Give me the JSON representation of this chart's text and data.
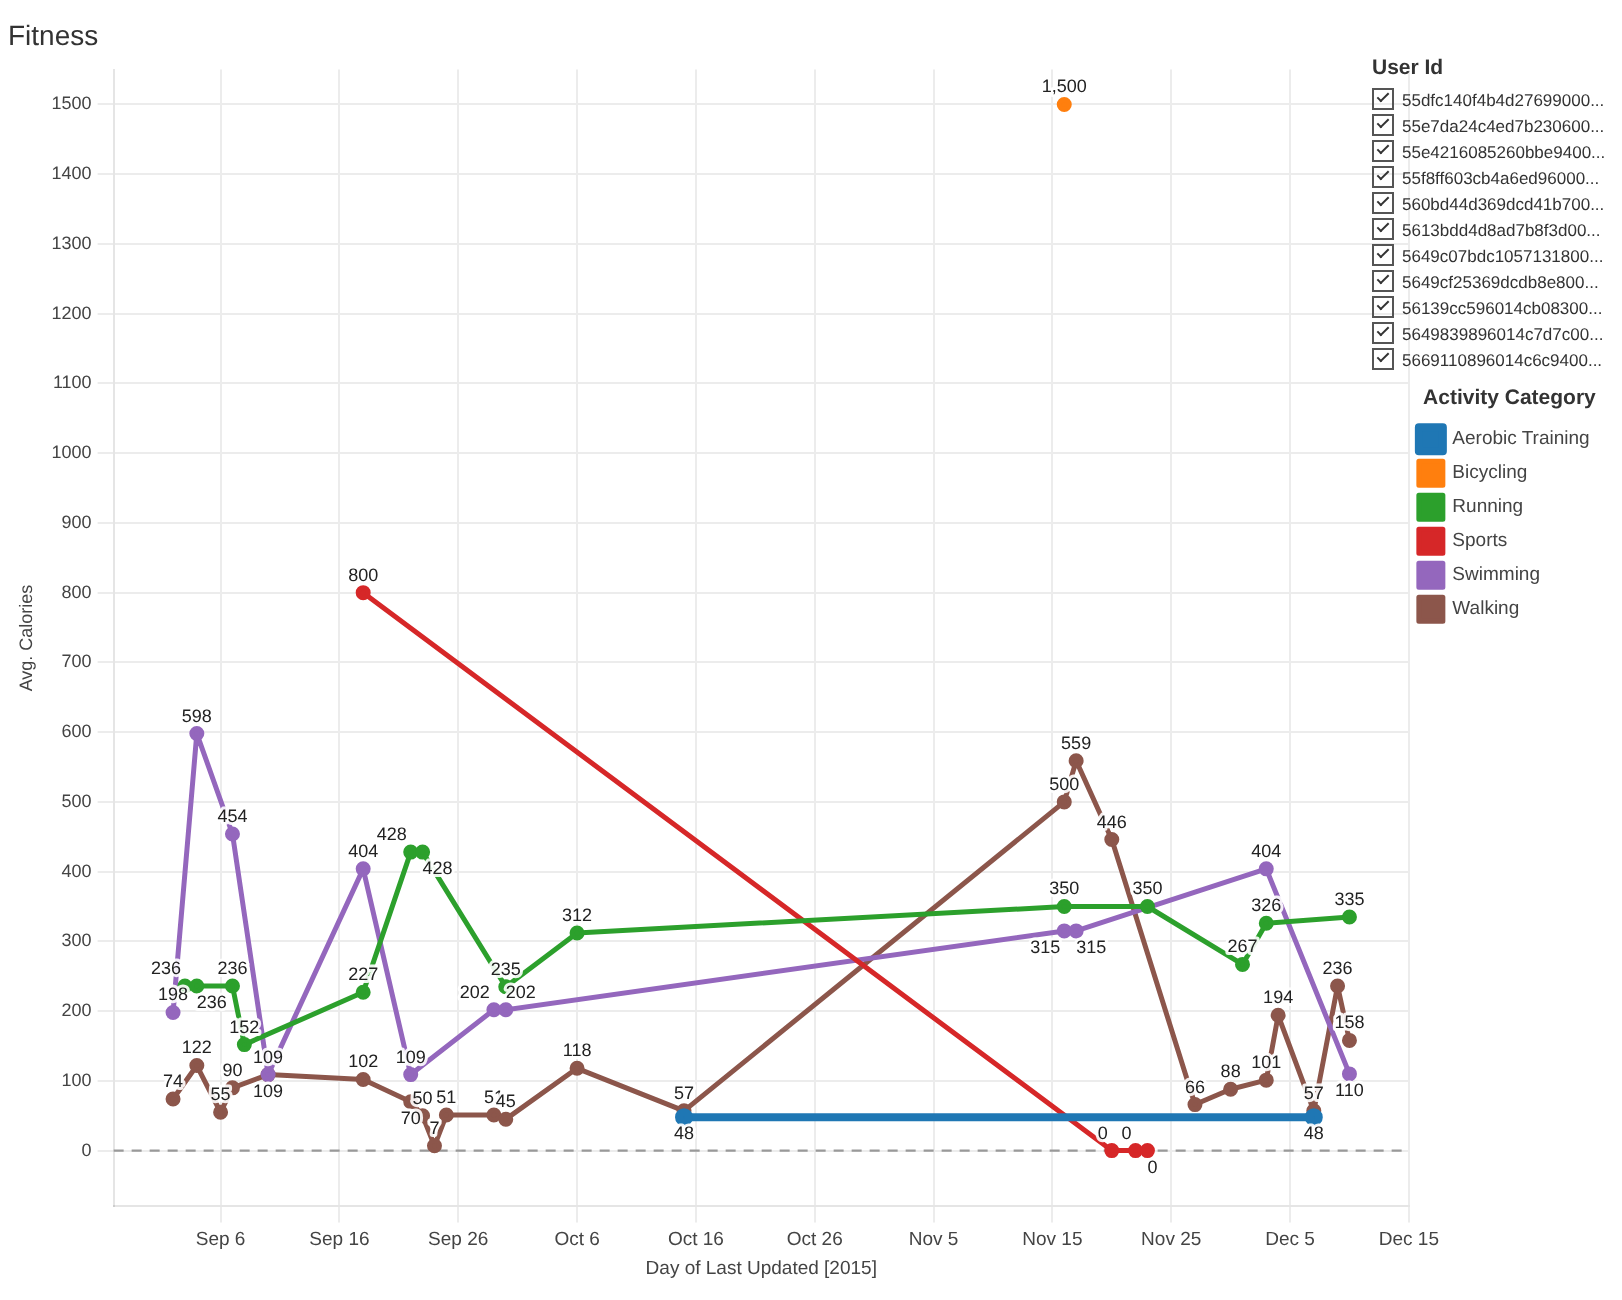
{
  "chart_data": {
    "type": "line",
    "title": "Fitness",
    "xlabel": "Day of Last Updated [2015]",
    "ylabel": "Avg. Calories",
    "legend_title": "Activity Category",
    "xlim": [
      "2015-08-28",
      "2015-12-15"
    ],
    "xticks": [
      {
        "value": "2015-09-06",
        "label": "Sep 6"
      },
      {
        "value": "2015-09-16",
        "label": "Sep 16"
      },
      {
        "value": "2015-09-26",
        "label": "Sep 26"
      },
      {
        "value": "2015-10-06",
        "label": "Oct 6"
      },
      {
        "value": "2015-10-16",
        "label": "Oct 16"
      },
      {
        "value": "2015-10-26",
        "label": "Oct 26"
      },
      {
        "value": "2015-11-05",
        "label": "Nov 5"
      },
      {
        "value": "2015-11-15",
        "label": "Nov 15"
      },
      {
        "value": "2015-11-25",
        "label": "Nov 25"
      },
      {
        "value": "2015-12-05",
        "label": "Dec 5"
      },
      {
        "value": "2015-12-15",
        "label": "Dec 15"
      }
    ],
    "ylim": [
      -80,
      1550
    ],
    "yticks": [
      0,
      100,
      200,
      300,
      400,
      500,
      600,
      700,
      800,
      900,
      1000,
      1100,
      1200,
      1300,
      1400,
      1500
    ],
    "grid": true,
    "legend": "right",
    "marker": "circle",
    "line_style": "solid",
    "ref_lines": [
      {
        "axis": "y",
        "value": 0,
        "color": "#999999",
        "line_style": "dashed"
      }
    ],
    "annotations": [
      "User Id",
      "55dfc140f4b4d27699000...",
      "55e7da24c4ed7b230600...",
      "55e4216085260bbe9400...",
      "55f8ff603cb4a6ed96000...",
      "560bd44d369dcd41b700...",
      "5613bdd4d8ad7b8f3d00...",
      "5649c07bdc1057131800...",
      "5649cf25369dcdb8e800...",
      "56139cc596014cb08300...",
      "5649839896014c7d7c00...",
      "5669110896014c6c9400..."
    ],
    "series": [
      {
        "name": "Aerobic Training",
        "color": "#1f77b4",
        "x": [
          "2015-10-15",
          "2015-12-07"
        ],
        "values": [
          48,
          48
        ],
        "value_labels": [
          "48",
          "48"
        ]
      },
      {
        "name": "Bicycling",
        "color": "#ff7f0e",
        "x": [
          "2015-11-16"
        ],
        "values": [
          1500
        ],
        "value_labels": [
          "1,500"
        ]
      },
      {
        "name": "Running",
        "color": "#2ca02c",
        "x": [
          "2015-09-03",
          "2015-09-04",
          "2015-09-07",
          "2015-09-08",
          "2015-09-18",
          "2015-09-22",
          "2015-09-23",
          "2015-09-30",
          "2015-10-06",
          "2015-11-16",
          "2015-11-23",
          "2015-12-01",
          "2015-12-03",
          "2015-12-10"
        ],
        "values": [
          236,
          236,
          236,
          152,
          227,
          428,
          428,
          235,
          312,
          350,
          350,
          267,
          326,
          335
        ],
        "value_labels": [
          "236",
          "236",
          "236",
          "152",
          "227",
          "428",
          "428",
          "235",
          "312",
          "350",
          "350",
          "267",
          "326",
          "335"
        ]
      },
      {
        "name": "Sports",
        "color": "#d62728",
        "x": [
          "2015-09-18",
          "2015-11-20",
          "2015-11-22",
          "2015-11-23"
        ],
        "values": [
          800,
          0,
          0,
          0
        ],
        "value_labels": [
          "800",
          "0",
          "0",
          "0"
        ]
      },
      {
        "name": "Swimming",
        "color": "#9467bd",
        "x": [
          "2015-09-02",
          "2015-09-04",
          "2015-09-07",
          "2015-09-10",
          "2015-09-18",
          "2015-09-22",
          "2015-09-29",
          "2015-09-30",
          "2015-11-16",
          "2015-11-17",
          "2015-12-03",
          "2015-12-10"
        ],
        "values": [
          198,
          598,
          454,
          109,
          404,
          109,
          202,
          202,
          315,
          315,
          404,
          110
        ],
        "value_labels": [
          "198",
          "598",
          "454",
          "109",
          "404",
          "109",
          "202",
          "202",
          "315",
          "315",
          "404",
          "110"
        ]
      },
      {
        "name": "Walking",
        "color": "#8c564b",
        "x": [
          "2015-09-02",
          "2015-09-04",
          "2015-09-06",
          "2015-09-07",
          "2015-09-10",
          "2015-09-18",
          "2015-09-22",
          "2015-09-23",
          "2015-09-24",
          "2015-09-25",
          "2015-09-29",
          "2015-09-30",
          "2015-10-06",
          "2015-10-15",
          "2015-11-16",
          "2015-11-17",
          "2015-11-20",
          "2015-11-27",
          "2015-11-30",
          "2015-12-03",
          "2015-12-04",
          "2015-12-07",
          "2015-12-09",
          "2015-12-10"
        ],
        "values": [
          74,
          122,
          55,
          90,
          109,
          102,
          70,
          50,
          7,
          51,
          51,
          45,
          118,
          57,
          500,
          559,
          446,
          66,
          88,
          101,
          194,
          57,
          236,
          158
        ],
        "value_labels": [
          "74",
          "122",
          "55",
          "90",
          "109",
          "102",
          "70",
          "50",
          "7",
          "51",
          "51",
          "45",
          "118",
          "57",
          "500",
          "559",
          "446",
          "66",
          "88",
          "101",
          "194",
          "57",
          "236",
          "158"
        ]
      }
    ]
  }
}
